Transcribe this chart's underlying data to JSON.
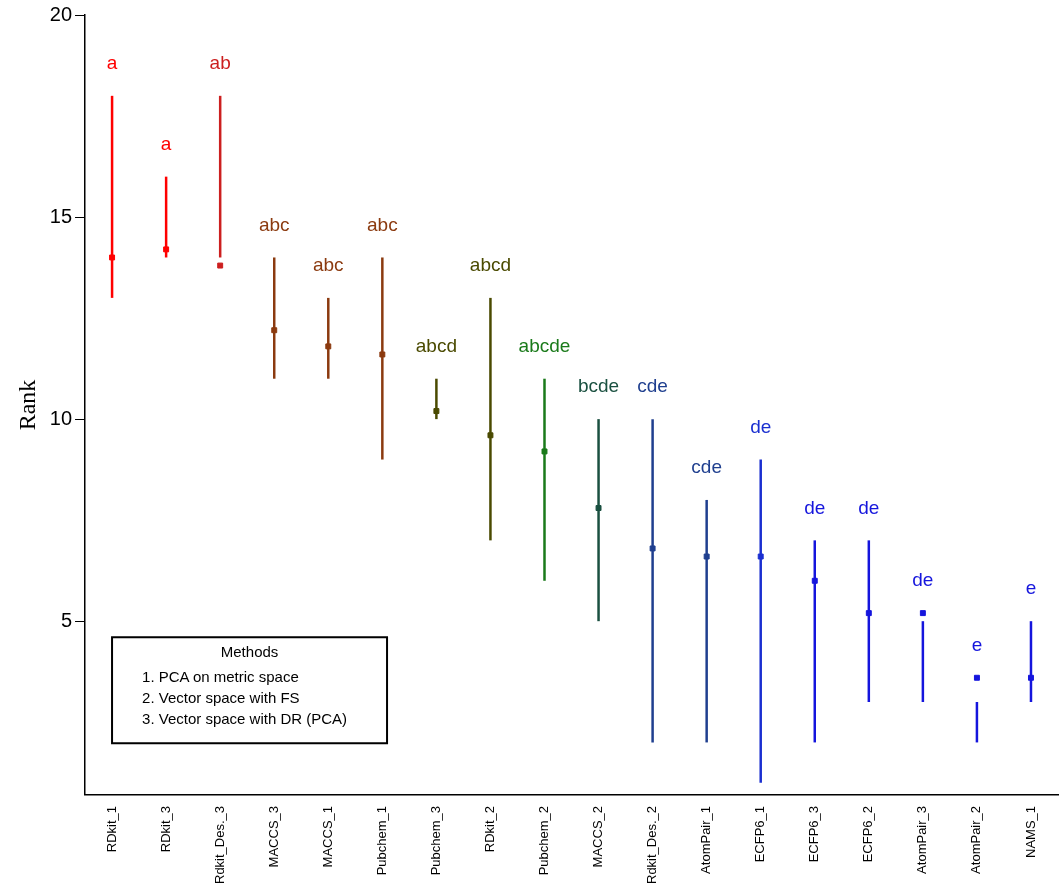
{
  "chart_data": {
    "type": "scatter",
    "ylabel": "Rank",
    "marker": "square",
    "grid": false,
    "legend": false,
    "categories": [
      "RDkit_1",
      "RDkit_3",
      "Rdkit_Des._3",
      "MACCS_3",
      "MACCS_1",
      "Pubchem_1",
      "Pubchem_3",
      "RDkit_2",
      "Pubchem_2",
      "MACCS_2",
      "Rdkit_Des._2",
      "AtomPair_1",
      "ECFP6_1",
      "ECFP6_3",
      "ECFP6_2",
      "AtomPair_3",
      "AtomPair_2",
      "NAMS_1"
    ],
    "values": [
      14.0,
      14.2,
      13.8,
      12.2,
      11.8,
      11.6,
      10.2,
      9.6,
      9.2,
      7.8,
      6.8,
      6.6,
      6.6,
      6.0,
      5.2,
      5.2,
      3.6,
      3.6
    ],
    "errors": [
      [
        13,
        18
      ],
      [
        14,
        16
      ],
      [
        14,
        18
      ],
      [
        11,
        14
      ],
      [
        11,
        13
      ],
      [
        9,
        14
      ],
      [
        10,
        11
      ],
      [
        7,
        13
      ],
      [
        6,
        11
      ],
      [
        5,
        10
      ],
      [
        2,
        10
      ],
      [
        2,
        8
      ],
      [
        1,
        9
      ],
      [
        2,
        7
      ],
      [
        3,
        7
      ],
      [
        3,
        5
      ],
      [
        2,
        3
      ],
      [
        3,
        5
      ]
    ],
    "colors": [
      "#ff0000",
      "#ff0000",
      "#cc1f1f",
      "#8b3a0f",
      "#8b3a0f",
      "#8b3a0f",
      "#4a4a00",
      "#4a4a00",
      "#1a7a1a",
      "#1a5040",
      "#1f3f8f",
      "#1f3f8f",
      "#1a2fd0",
      "#1515dd",
      "#1515dd",
      "#1515dd",
      "#1515dd",
      "#1515dd"
    ],
    "ylim": [
      0.7,
      20
    ],
    "yticks": [
      5,
      10,
      15,
      20
    ],
    "annotations": [
      "a",
      "a",
      "ab",
      "abc",
      "abc",
      "abc",
      "abcd",
      "abcd",
      "abcde",
      "bcde",
      "cde",
      "cde",
      "de",
      "de",
      "de",
      "de",
      "e",
      "e",
      "Methods",
      "1. PCA on metric space",
      "2. Vector space with FS",
      "3. Vector space with DR (PCA)"
    ]
  }
}
